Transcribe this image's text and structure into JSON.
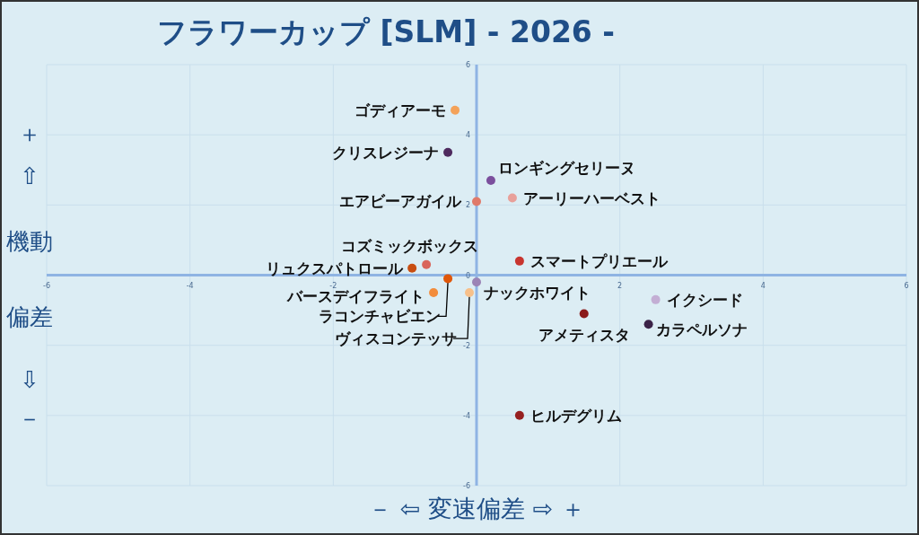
{
  "chart_data": {
    "type": "scatter",
    "title": "フラワーカップ [SLM]  - 2026 -",
    "xlabel": "－ ⇦ 変速偏差 ⇨ ＋",
    "ylabel": "＋ ⇧ 機動偏差 ⇩ －",
    "xlim": [
      -6,
      6
    ],
    "ylim": [
      -6,
      6
    ],
    "xticks": [
      -6,
      -4,
      -2,
      {
        "value": 0,
        "label": null
      },
      2,
      4,
      6
    ],
    "yticks": [
      -6,
      -4,
      -2,
      0,
      2,
      4,
      6
    ],
    "grid": true,
    "legend": false,
    "marker": "circle",
    "series": [
      {
        "name": "ゴディアーモ",
        "color": "#f4a259",
        "x": [
          -0.3
        ],
        "values": [
          4.7
        ]
      },
      {
        "name": "クリスレジーナ",
        "color": "#4e2a5e",
        "x": [
          -0.4
        ],
        "values": [
          3.5
        ]
      },
      {
        "name": "ロンギングセリーヌ",
        "color": "#7b4f9d",
        "x": [
          0.2
        ],
        "values": [
          2.7
        ]
      },
      {
        "name": "エアビーアガイル",
        "color": "#e07a6a",
        "x": [
          0.0
        ],
        "values": [
          2.1
        ]
      },
      {
        "name": "アーリーハーベスト",
        "color": "#e8a09a",
        "x": [
          0.5
        ],
        "values": [
          2.2
        ]
      },
      {
        "name": "コズミックボックス",
        "color": "#d9655b",
        "x": [
          -0.7
        ],
        "values": [
          0.3
        ]
      },
      {
        "name": "リュクスパトロール",
        "color": "#c84e12",
        "x": [
          -0.9
        ],
        "values": [
          0.2
        ]
      },
      {
        "name": "スマートプリエール",
        "color": "#c8352f",
        "x": [
          0.6
        ],
        "values": [
          0.4
        ]
      },
      {
        "name": "バースデイフライト",
        "color": "#f28c3c",
        "x": [
          -0.6
        ],
        "values": [
          -0.5
        ]
      },
      {
        "name": "ラコンチャビエン",
        "color": "#e0570a",
        "x": [
          -0.4
        ],
        "values": [
          -0.1
        ]
      },
      {
        "name": "ナックホワイト",
        "color": "#9b83b5",
        "x": [
          0.0
        ],
        "values": [
          -0.2
        ]
      },
      {
        "name": "ヴィスコンテッサ",
        "color": "#f7c08a",
        "x": [
          -0.1
        ],
        "values": [
          -0.5
        ]
      },
      {
        "name": "イクシード",
        "color": "#c3aed4",
        "x": [
          2.5
        ],
        "values": [
          -0.7
        ]
      },
      {
        "name": "アメティスタ",
        "color": "#8b1a1a",
        "x": [
          1.5
        ],
        "values": [
          -1.1
        ]
      },
      {
        "name": "カラペルソナ",
        "color": "#3b2348",
        "x": [
          2.4
        ],
        "values": [
          -1.4
        ]
      },
      {
        "name": "ヒルデグリム",
        "color": "#962020",
        "x": [
          0.6
        ],
        "values": [
          -4.0
        ]
      }
    ]
  }
}
